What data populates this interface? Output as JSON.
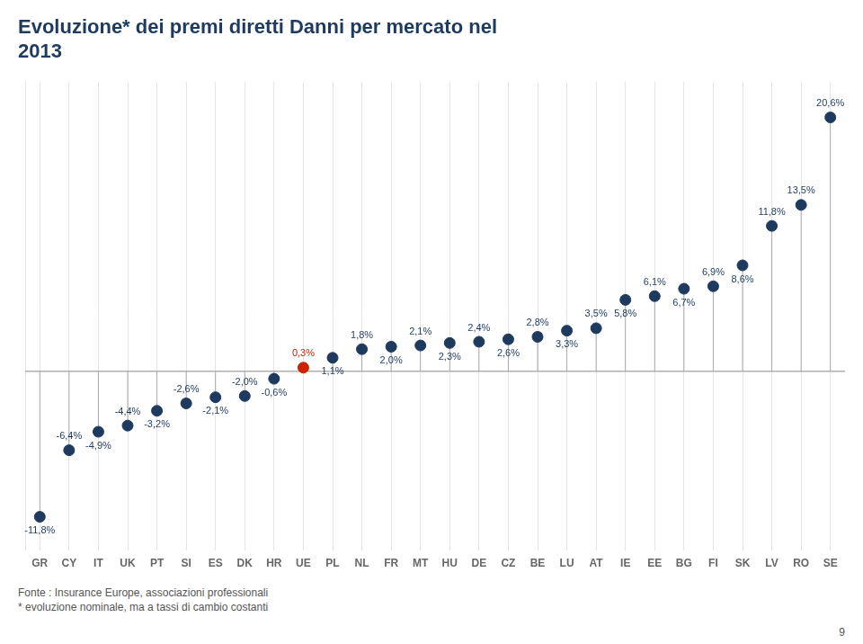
{
  "chart_data": {
    "type": "lollipop",
    "title": [
      "Evoluzione* dei premi diretti Danni per mercato nel",
      "2013"
    ],
    "categories": [
      "GR",
      "CY",
      "IT",
      "UK",
      "PT",
      "SI",
      "ES",
      "DK",
      "HR",
      "UE",
      "PL",
      "NL",
      "FR",
      "MT",
      "HU",
      "DE",
      "CZ",
      "BE",
      "LU",
      "AT",
      "IE",
      "EE",
      "BG",
      "FI",
      "SK",
      "LV",
      "RO",
      "SE"
    ],
    "values": [
      -11.8,
      -6.4,
      -4.9,
      -4.4,
      -3.2,
      -2.6,
      -2.1,
      -2.0,
      -0.6,
      0.3,
      1.1,
      1.8,
      2.0,
      2.1,
      2.3,
      2.4,
      2.6,
      2.8,
      3.3,
      3.5,
      5.8,
      6.1,
      6.7,
      6.9,
      8.6,
      11.8,
      13.5,
      20.6
    ],
    "value_labels": [
      "-11,8%",
      "-6,4%",
      "-4,9%",
      "-4,4%",
      "-3,2%",
      "-2,6%",
      "-2,1%",
      "-2,0%",
      "-0,6%",
      "0,3%",
      "1,1%",
      "1,8%",
      "2,0%",
      "2,1%",
      "2,3%",
      "2,4%",
      "2,6%",
      "2,8%",
      "3,3%",
      "3,5%",
      "5,8%",
      "6,1%",
      "6,7%",
      "6,9%",
      "8,6%",
      "11,8%",
      "13,5%",
      "20,6%"
    ],
    "data_labels": true,
    "colors": [
      "#1e3a5f",
      "#1e3a5f",
      "#1e3a5f",
      "#1e3a5f",
      "#1e3a5f",
      "#1e3a5f",
      "#1e3a5f",
      "#1e3a5f",
      "#1e3a5f",
      "#cc2200",
      "#1e3a5f",
      "#1e3a5f",
      "#1e3a5f",
      "#1e3a5f",
      "#1e3a5f",
      "#1e3a5f",
      "#1e3a5f",
      "#1e3a5f",
      "#1e3a5f",
      "#1e3a5f",
      "#1e3a5f",
      "#1e3a5f",
      "#1e3a5f",
      "#1e3a5f",
      "#1e3a5f",
      "#1e3a5f",
      "#1e3a5f",
      "#1e3a5f"
    ],
    "ylim": [
      -14.5,
      23.5
    ],
    "tick_labels": "x",
    "grid": true,
    "annotations": [
      "Fonte : Insurance Europe, associazioni professionali",
      "* evoluzione nominale, ma a tassi di cambio costanti",
      "9"
    ]
  }
}
